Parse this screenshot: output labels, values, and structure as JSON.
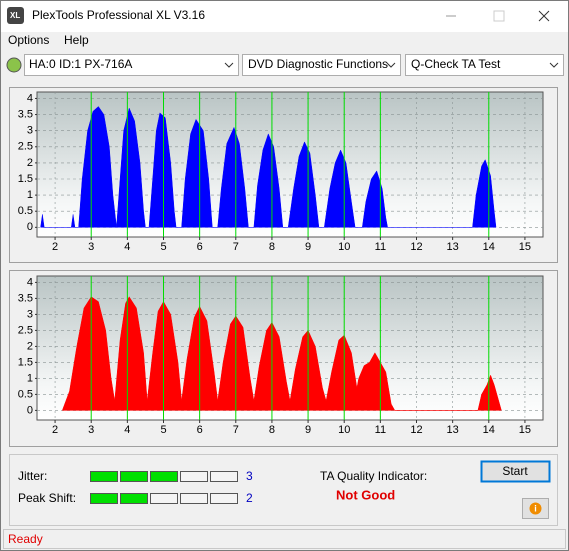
{
  "window": {
    "title": "PlexTools Professional XL V3.16"
  },
  "menu": [
    "Options",
    "Help"
  ],
  "toolbar": {
    "drive": "HA:0 ID:1  PX-716A",
    "function": "DVD Diagnostic Functions",
    "test": "Q-Check TA Test"
  },
  "chart_data": [
    {
      "type": "area",
      "color": "#0000ff",
      "x": [
        1.6,
        1.65,
        1.7,
        2.45,
        2.5,
        2.55,
        2.65,
        2.75,
        2.9,
        3.05,
        3.2,
        3.35,
        3.5,
        3.6,
        3.7,
        3.8,
        3.9,
        4.05,
        4.2,
        4.35,
        4.45,
        4.5,
        4.6,
        4.7,
        4.8,
        4.9,
        5.05,
        5.2,
        5.3,
        5.35,
        5.5,
        5.6,
        5.75,
        5.9,
        6.1,
        6.25,
        6.35,
        6.5,
        6.6,
        6.75,
        6.95,
        7.1,
        7.25,
        7.35,
        7.5,
        7.6,
        7.75,
        7.9,
        8.05,
        8.2,
        8.3,
        8.45,
        8.6,
        8.75,
        8.9,
        9.05,
        9.2,
        9.3,
        9.45,
        9.6,
        9.75,
        9.9,
        10.05,
        10.2,
        10.3,
        10.5,
        10.6,
        10.75,
        10.9,
        11.05,
        11.15,
        11.2,
        13.55,
        13.65,
        13.8,
        13.9,
        14.05,
        14.15,
        14.2
      ],
      "values": [
        0,
        0.4,
        0,
        0,
        0.4,
        0,
        0,
        1.5,
        3.0,
        3.6,
        3.75,
        3.5,
        2.5,
        1.0,
        0,
        1.5,
        3.0,
        3.7,
        3.3,
        2.0,
        0.5,
        0,
        0,
        1.5,
        3.0,
        3.55,
        3.4,
        2.0,
        0.5,
        0,
        0,
        1.5,
        2.9,
        3.35,
        3.0,
        1.5,
        0,
        0,
        1.2,
        2.6,
        3.1,
        2.6,
        1.2,
        0,
        0,
        1.3,
        2.4,
        2.9,
        2.5,
        1.2,
        0,
        0,
        1.2,
        2.2,
        2.65,
        2.3,
        1.0,
        0,
        0,
        1.2,
        2.0,
        2.4,
        2.0,
        0.8,
        0,
        0,
        0.8,
        1.5,
        1.75,
        1.2,
        0.3,
        0,
        0,
        1.0,
        1.9,
        2.1,
        1.6,
        0.5,
        0
      ],
      "xlim": [
        1.5,
        15.5
      ],
      "ylim": [
        -0.3,
        4.2
      ],
      "xticks": [
        2,
        3,
        4,
        5,
        6,
        7,
        8,
        9,
        10,
        11,
        12,
        13,
        14,
        15
      ],
      "yticks": [
        0,
        0.5,
        1,
        1.5,
        2,
        2.5,
        3,
        3.5,
        4
      ],
      "grid": true,
      "reference_lines": {
        "x": [
          3,
          4,
          5,
          6,
          7,
          8,
          9,
          10,
          11,
          14
        ],
        "color": "#00dd00"
      }
    },
    {
      "type": "area",
      "color": "#ff0000",
      "x": [
        2.2,
        2.4,
        2.6,
        2.8,
        3.0,
        3.2,
        3.4,
        3.55,
        3.65,
        3.8,
        3.95,
        4.05,
        4.25,
        4.45,
        4.55,
        4.7,
        4.85,
        5.0,
        5.2,
        5.4,
        5.5,
        5.65,
        5.85,
        6.0,
        6.2,
        6.4,
        6.5,
        6.65,
        6.85,
        7.0,
        7.2,
        7.4,
        7.5,
        7.65,
        7.85,
        8.0,
        8.2,
        8.4,
        8.5,
        8.65,
        8.85,
        9.0,
        9.2,
        9.4,
        9.5,
        9.65,
        9.85,
        10.0,
        10.2,
        10.35,
        10.4,
        10.55,
        10.7,
        10.85,
        11.0,
        11.15,
        11.3,
        11.4,
        13.7,
        13.8,
        13.95,
        14.05,
        14.15,
        14.3,
        14.35
      ],
      "values": [
        0,
        0.6,
        2.0,
        3.2,
        3.55,
        3.4,
        2.5,
        1.0,
        0.3,
        2.2,
        3.35,
        3.55,
        3.2,
        1.8,
        0.3,
        1.8,
        3.1,
        3.4,
        3.0,
        1.5,
        0.3,
        1.6,
        2.9,
        3.25,
        2.8,
        1.2,
        0.3,
        1.5,
        2.7,
        2.95,
        2.6,
        1.0,
        0.3,
        1.4,
        2.5,
        2.75,
        2.3,
        0.9,
        0.3,
        1.3,
        2.3,
        2.5,
        2.0,
        0.7,
        0.3,
        1.2,
        2.2,
        2.35,
        1.8,
        0.7,
        1.0,
        1.4,
        1.5,
        1.8,
        1.5,
        1.2,
        0.2,
        0,
        0,
        0.5,
        0.8,
        1.1,
        0.8,
        0.2,
        0
      ],
      "xlim": [
        1.5,
        15.5
      ],
      "ylim": [
        -0.3,
        4.2
      ],
      "xticks": [
        2,
        3,
        4,
        5,
        6,
        7,
        8,
        9,
        10,
        11,
        12,
        13,
        14,
        15
      ],
      "yticks": [
        0,
        0.5,
        1,
        1.5,
        2,
        2.5,
        3,
        3.5,
        4
      ],
      "grid": true,
      "reference_lines": {
        "x": [
          3,
          4,
          5,
          6,
          7,
          8,
          9,
          10,
          11,
          14
        ],
        "color": "#00dd00"
      }
    }
  ],
  "results": {
    "jitter": {
      "label": "Jitter:",
      "value": 3
    },
    "peak_shift": {
      "label": "Peak Shift:",
      "value": 2
    },
    "ta_quality": {
      "label": "TA Quality Indicator:",
      "value": "Not Good"
    }
  },
  "buttons": {
    "start": "Start"
  },
  "status": "Ready"
}
